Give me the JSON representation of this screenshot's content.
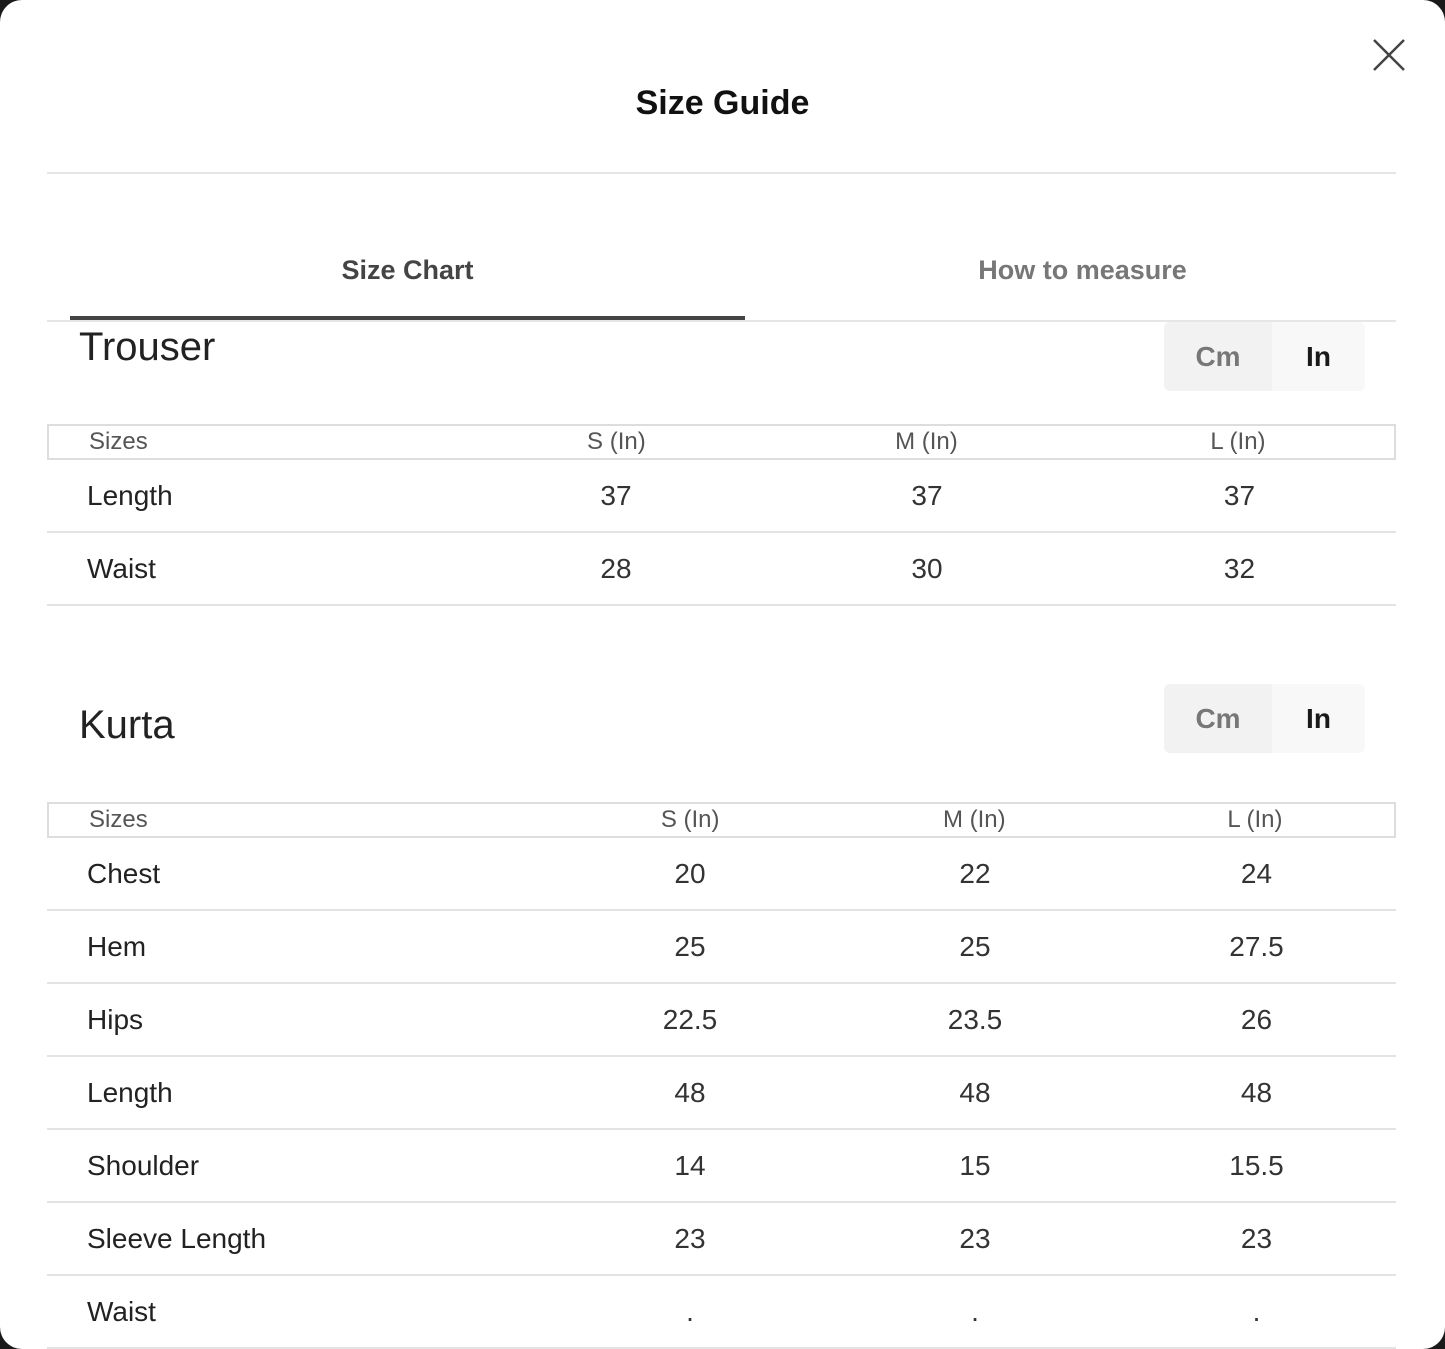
{
  "modal": {
    "title": "Size Guide",
    "close_icon": "close-x-icon"
  },
  "tabs": [
    {
      "label": "Size Chart",
      "active": true
    },
    {
      "label": "How to measure",
      "active": false
    }
  ],
  "sections": [
    {
      "title": "Trouser",
      "unit_toggle": {
        "options": [
          "Cm",
          "In"
        ],
        "selected": "In"
      },
      "headers": [
        "Sizes",
        "S (In)",
        "M (In)",
        "L (In)"
      ],
      "rows": [
        [
          "Length",
          "37",
          "37",
          "37"
        ],
        [
          "Waist",
          "28",
          "30",
          "32"
        ]
      ]
    },
    {
      "title": "Kurta",
      "unit_toggle": {
        "options": [
          "Cm",
          "In"
        ],
        "selected": "In"
      },
      "headers": [
        "Sizes",
        "S (In)",
        "M (In)",
        "L (In)"
      ],
      "rows": [
        [
          "Chest",
          "20",
          "22",
          "24"
        ],
        [
          "Hem",
          "25",
          "25",
          "27.5"
        ],
        [
          "Hips",
          "22.5",
          "23.5",
          "26"
        ],
        [
          "Length",
          "48",
          "48",
          "48"
        ],
        [
          "Shoulder",
          "14",
          "15",
          "15.5"
        ],
        [
          "Sleeve Length",
          "23",
          "23",
          "23"
        ],
        [
          "Waist",
          ".",
          ".",
          "."
        ]
      ]
    }
  ]
}
